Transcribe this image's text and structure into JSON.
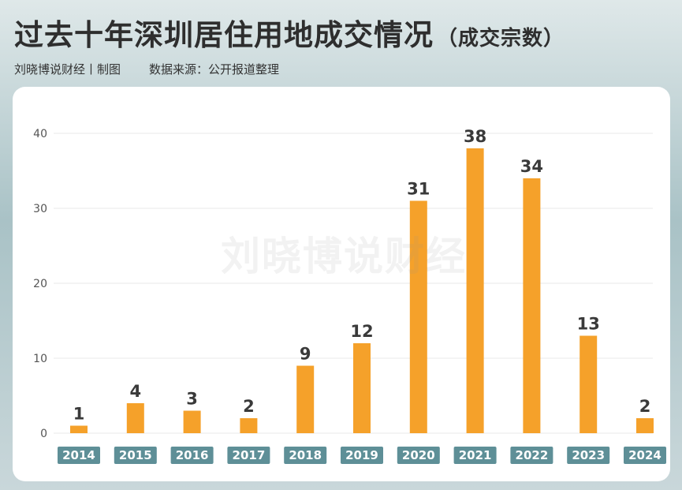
{
  "header": {
    "title": "过去十年深圳居住用地成交情况",
    "subtitle": "（成交宗数）",
    "credit": "刘晓博说财经丨制图",
    "source": "数据来源：公开报道整理",
    "watermark": "刘晓博说财经"
  },
  "chart_data": {
    "type": "bar",
    "title": "过去十年深圳居住用地成交情况",
    "subtitle": "（成交宗数）",
    "xlabel": "",
    "ylabel": "",
    "categories": [
      "2014",
      "2015",
      "2016",
      "2017",
      "2018",
      "2019",
      "2020",
      "2021",
      "2022",
      "2023",
      "2024"
    ],
    "values": [
      1,
      4,
      3,
      2,
      9,
      12,
      31,
      38,
      34,
      13,
      2
    ],
    "ylim": [
      0,
      40
    ],
    "yticks": [
      0,
      10,
      20,
      30,
      40
    ],
    "grid": true,
    "legend": "none",
    "colors": {
      "bar": "#f5a12a",
      "xlabel_bg": "#5e8f97",
      "xlabel_text": "#ffffff",
      "value_text": "#3a3a3a",
      "grid": "#e8e8e8",
      "tick_text": "#555555"
    }
  }
}
